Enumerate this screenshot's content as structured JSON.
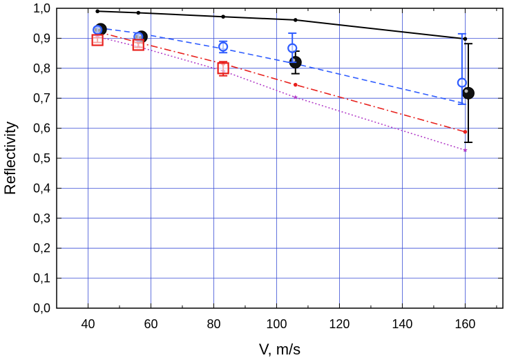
{
  "chart_data": {
    "type": "scatter",
    "title": "",
    "xlabel": "V, m/s",
    "ylabel": "Reflectivity",
    "xlim": [
      30,
      172
    ],
    "ylim": [
      0.0,
      1.0
    ],
    "xticks": [
      40,
      60,
      80,
      100,
      120,
      140,
      160
    ],
    "yticks": [
      0.0,
      0.1,
      0.2,
      0.3,
      0.4,
      0.5,
      0.6,
      0.7,
      0.8,
      0.9,
      1.0
    ],
    "x_tick_labels": [
      "40",
      "60",
      "80",
      "100",
      "120",
      "140",
      "160"
    ],
    "y_tick_labels": [
      "0,0",
      "0,1",
      "0,2",
      "0,3",
      "0,4",
      "0,5",
      "0,6",
      "0,7",
      "0,8",
      "0,9",
      "1,0"
    ],
    "grid": true,
    "series": [
      {
        "name": "calc-black-solid",
        "style": "line",
        "color": "#000000",
        "dash": "",
        "marker": "dot",
        "x": [
          43,
          56,
          83,
          106,
          160
        ],
        "y": [
          0.99,
          0.985,
          0.972,
          0.961,
          0.898
        ]
      },
      {
        "name": "calc-blue-dashed",
        "style": "line",
        "color": "#2e5cff",
        "dash": "8,5",
        "marker": "none",
        "x": [
          43,
          56,
          83,
          106,
          160
        ],
        "y": [
          0.935,
          0.917,
          0.865,
          0.815,
          0.682
        ]
      },
      {
        "name": "calc-red-dashdot",
        "style": "line",
        "color": "#e8201c",
        "dash": "10,4,2,4",
        "marker": "dot",
        "x": [
          43,
          56,
          83,
          106,
          160
        ],
        "y": [
          0.922,
          0.886,
          0.815,
          0.745,
          0.588
        ]
      },
      {
        "name": "calc-magenta-dotted",
        "style": "line",
        "color": "#b23cc8",
        "dash": "2,3",
        "marker": "star",
        "x": [
          43,
          56,
          83,
          106,
          160
        ],
        "y": [
          0.905,
          0.872,
          0.791,
          0.703,
          0.527
        ]
      },
      {
        "name": "exp-black-filled",
        "style": "points",
        "color": "#000000",
        "marker": "filled-circle",
        "x": [
          44,
          57,
          106,
          161
        ],
        "y": [
          0.93,
          0.905,
          0.82,
          0.717
        ],
        "err_lo": [
          0.922,
          0.897,
          0.782,
          0.553
        ],
        "err_hi": [
          0.938,
          0.913,
          0.857,
          0.882
        ]
      },
      {
        "name": "exp-blue-open",
        "style": "points",
        "color": "#2e5cff",
        "marker": "open-circle",
        "x": [
          43,
          56,
          83,
          105,
          159
        ],
        "y": [
          0.928,
          0.905,
          0.872,
          0.867,
          0.752
        ],
        "err_lo": [
          0.92,
          0.897,
          0.852,
          0.82,
          0.68
        ],
        "err_hi": [
          0.936,
          0.913,
          0.89,
          0.917,
          0.915
        ]
      },
      {
        "name": "exp-red-square",
        "style": "points",
        "color": "#e8201c",
        "marker": "open-square",
        "x": [
          43,
          56,
          83
        ],
        "y": [
          0.894,
          0.878,
          0.8
        ],
        "err_lo": [
          0.886,
          0.87,
          0.775
        ],
        "err_hi": [
          0.902,
          0.886,
          0.822
        ]
      }
    ]
  }
}
